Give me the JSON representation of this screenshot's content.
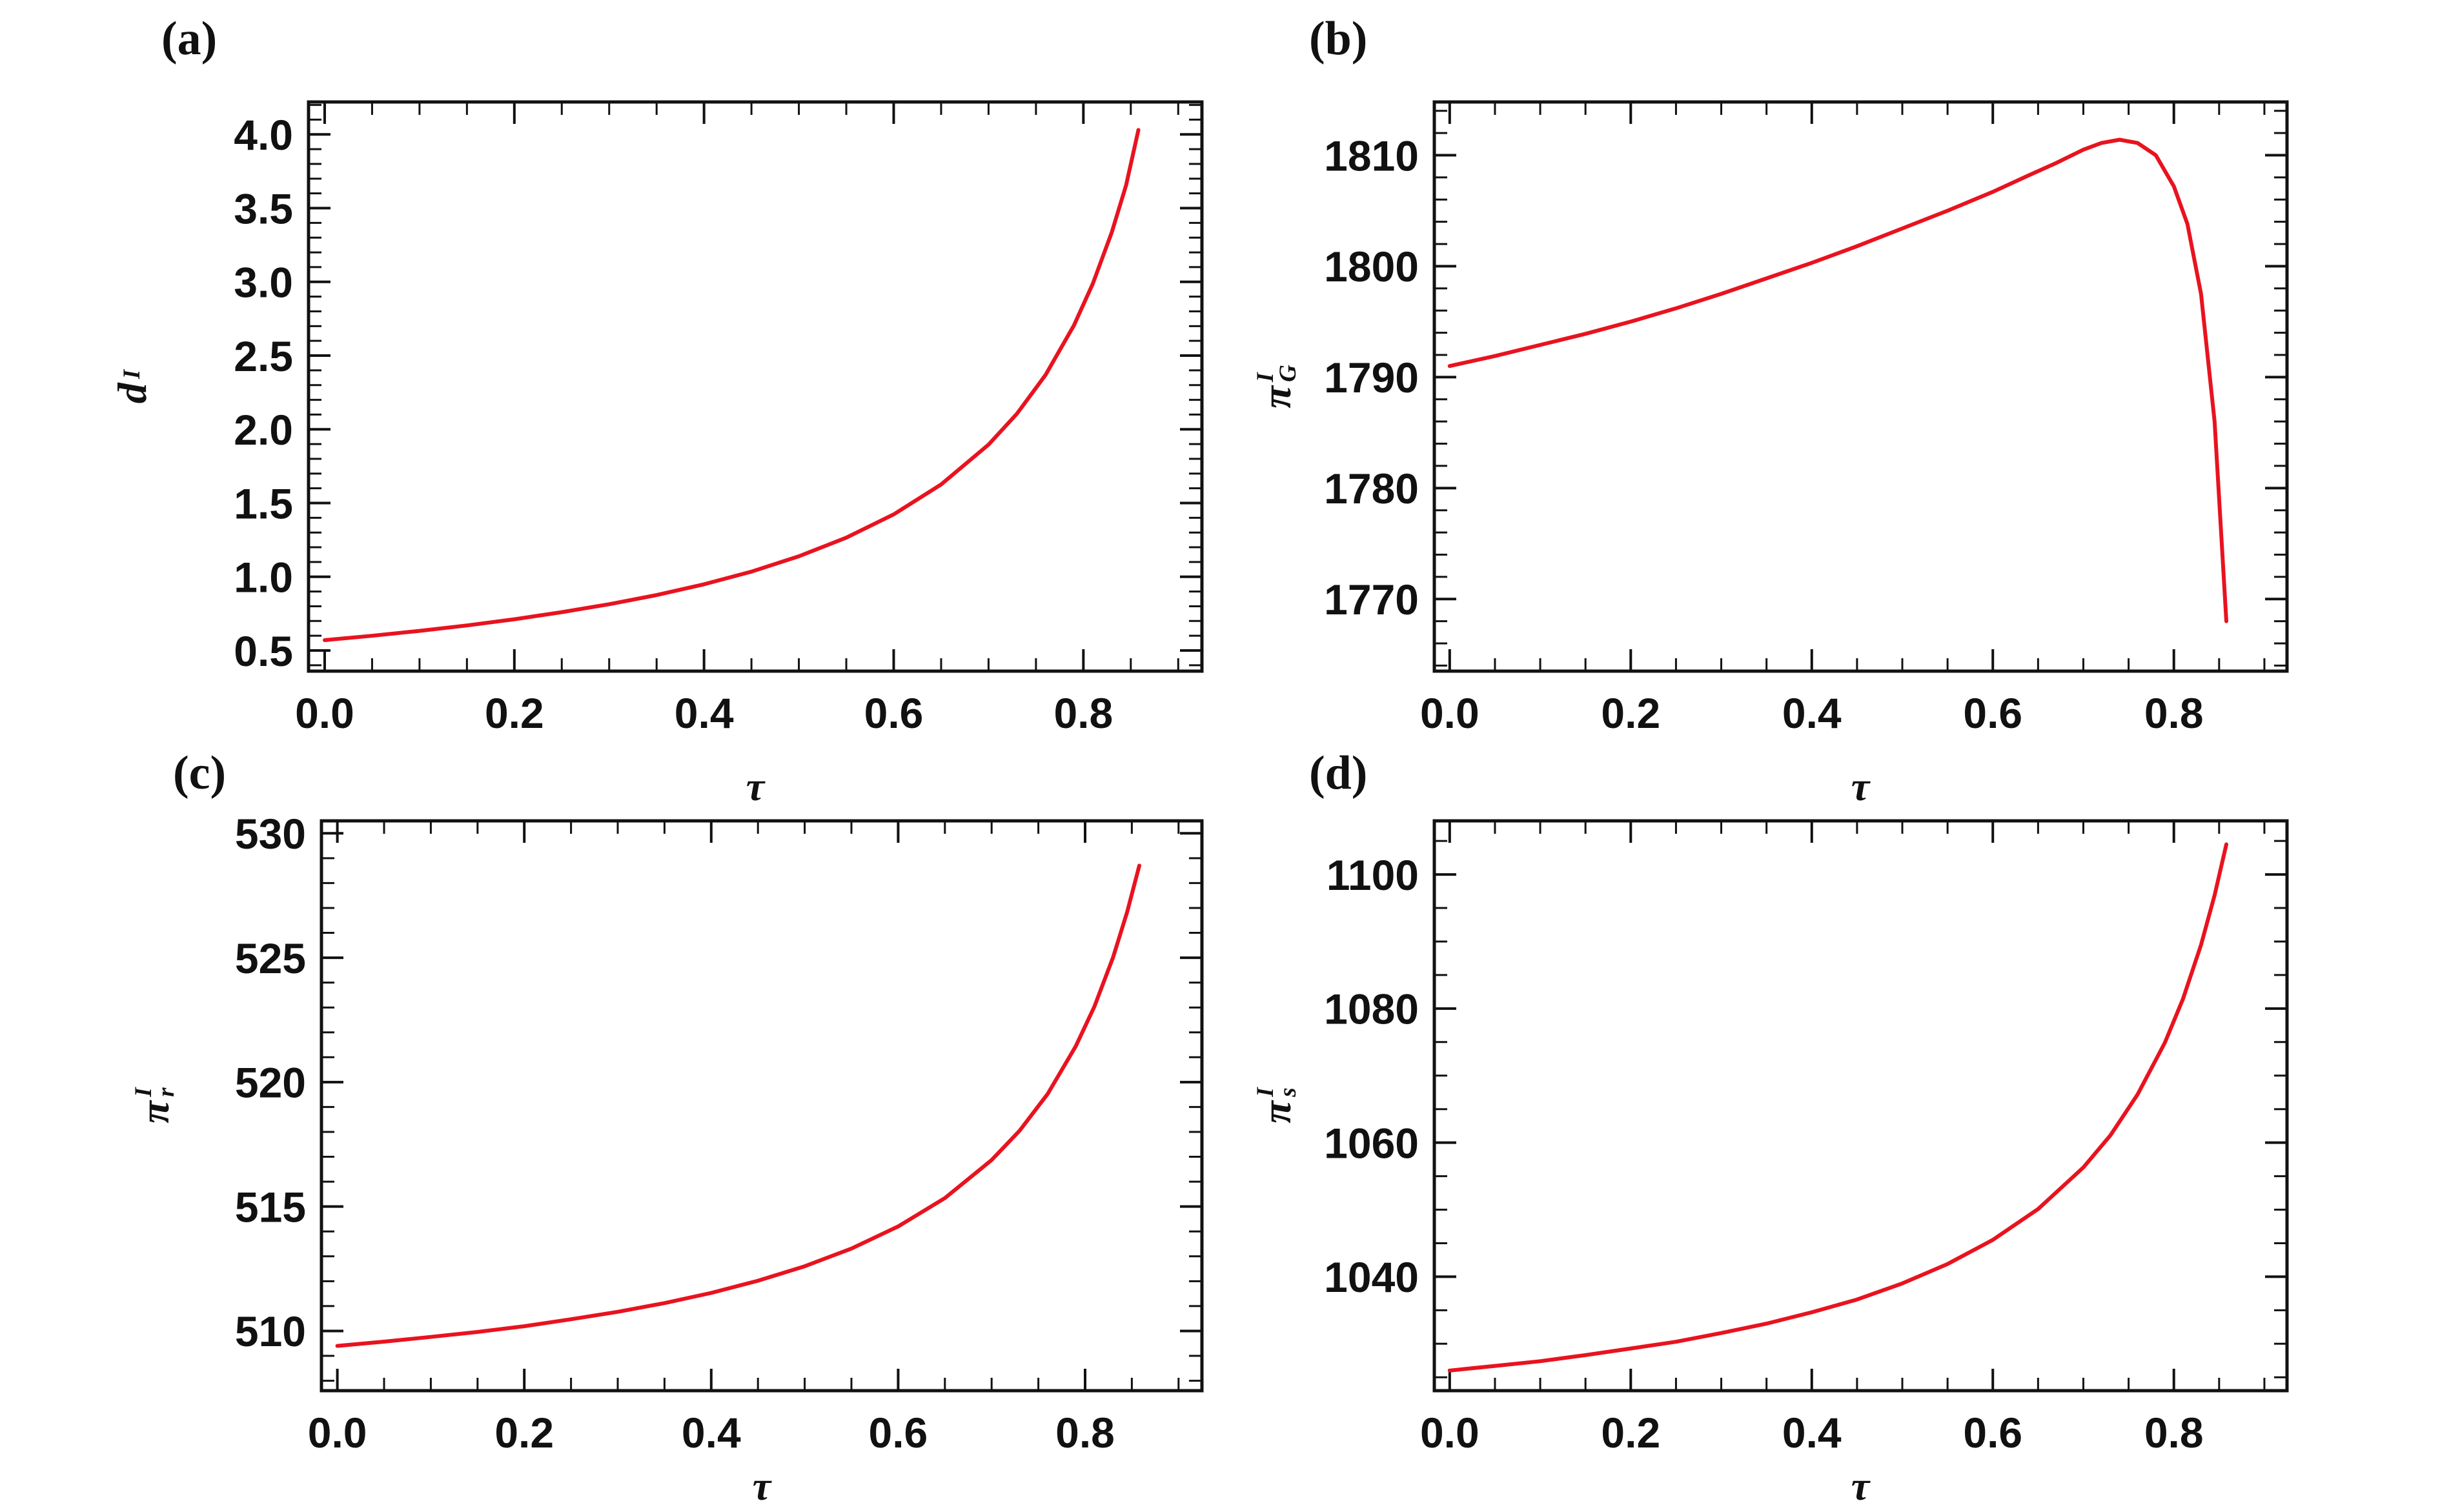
{
  "figure": {
    "background": "#ffffff",
    "frame_color": "#111111",
    "curve_color": "#e8131f",
    "tick_label_color": "#111111",
    "xlabel": "τ"
  },
  "chart_data": [
    {
      "type": "line",
      "panel": "(a)",
      "xlabel": "τ",
      "ylabel": "d^I",
      "ylabel_parts": {
        "base": "d",
        "sup": "I",
        "sub": ""
      },
      "xlim": [
        -0.017,
        0.925
      ],
      "ylim": [
        0.36,
        4.22
      ],
      "xticks": {
        "major": [
          0,
          0.2,
          0.4,
          0.6,
          0.8
        ],
        "labels": [
          "0.0",
          "0.2",
          "0.4",
          "0.6",
          "0.8"
        ],
        "minor_step": 0.05
      },
      "yticks": {
        "major": [
          0.5,
          1.0,
          1.5,
          2.0,
          2.5,
          3.0,
          3.5,
          4.0
        ],
        "labels": [
          "0.5",
          "1.0",
          "1.5",
          "2.0",
          "2.5",
          "3.0",
          "3.5",
          "4.0"
        ],
        "minor_step": 0.1
      },
      "grid": false,
      "legend": null,
      "series": [
        {
          "name": "d^I",
          "color": "#e8131f",
          "x": [
            0,
            0.05,
            0.1,
            0.15,
            0.2,
            0.25,
            0.3,
            0.35,
            0.4,
            0.45,
            0.5,
            0.55,
            0.6,
            0.65,
            0.7,
            0.73,
            0.76,
            0.79,
            0.81,
            0.83,
            0.845,
            0.858
          ],
          "y": [
            0.57,
            0.6,
            0.633,
            0.67,
            0.712,
            0.76,
            0.814,
            0.876,
            0.949,
            1.035,
            1.139,
            1.265,
            1.423,
            1.626,
            1.896,
            2.106,
            2.368,
            2.705,
            2.988,
            3.337,
            3.655,
            4.03
          ]
        }
      ]
    },
    {
      "type": "line",
      "panel": "(b)",
      "xlabel": "τ",
      "ylabel": "π_G^I",
      "ylabel_parts": {
        "base": "π",
        "sup": "I",
        "sub": "G"
      },
      "xlim": [
        -0.017,
        0.925
      ],
      "ylim": [
        1763.5,
        1814.8
      ],
      "xticks": {
        "major": [
          0,
          0.2,
          0.4,
          0.6,
          0.8
        ],
        "labels": [
          "0.0",
          "0.2",
          "0.4",
          "0.6",
          "0.8"
        ],
        "minor_step": 0.05
      },
      "yticks": {
        "major": [
          1770,
          1780,
          1790,
          1800,
          1810
        ],
        "labels": [
          "1770",
          "1780",
          "1790",
          "1800",
          "1810"
        ],
        "minor_step": 2
      },
      "grid": false,
      "legend": null,
      "series": [
        {
          "name": "π_G^I",
          "color": "#e8131f",
          "x": [
            0,
            0.05,
            0.1,
            0.15,
            0.2,
            0.25,
            0.3,
            0.35,
            0.4,
            0.45,
            0.5,
            0.55,
            0.6,
            0.64,
            0.67,
            0.7,
            0.72,
            0.74,
            0.76,
            0.78,
            0.8,
            0.815,
            0.83,
            0.845,
            0.858
          ],
          "y": [
            1791.0,
            1791.9,
            1792.9,
            1793.9,
            1795.0,
            1796.2,
            1797.5,
            1798.9,
            1800.3,
            1801.8,
            1803.4,
            1805.0,
            1806.7,
            1808.2,
            1809.3,
            1810.5,
            1811.1,
            1811.4,
            1811.1,
            1810.0,
            1807.2,
            1803.8,
            1797.5,
            1786.0,
            1768.0
          ]
        }
      ]
    },
    {
      "type": "line",
      "panel": "(c)",
      "xlabel": "τ",
      "ylabel": "π_r^I",
      "ylabel_parts": {
        "base": "π",
        "sup": "I",
        "sub": "r"
      },
      "xlim": [
        -0.017,
        0.925
      ],
      "ylim": [
        507.6,
        530.5
      ],
      "xticks": {
        "major": [
          0,
          0.2,
          0.4,
          0.6,
          0.8
        ],
        "labels": [
          "0.0",
          "0.2",
          "0.4",
          "0.6",
          "0.8"
        ],
        "minor_step": 0.05
      },
      "yticks": {
        "major": [
          510,
          515,
          520,
          525,
          530
        ],
        "labels": [
          "510",
          "515",
          "520",
          "525",
          "530"
        ],
        "minor_step": 1
      },
      "grid": false,
      "legend": null,
      "series": [
        {
          "name": "π_r^I",
          "color": "#e8131f",
          "x": [
            0,
            0.05,
            0.1,
            0.15,
            0.2,
            0.25,
            0.3,
            0.35,
            0.4,
            0.45,
            0.5,
            0.55,
            0.6,
            0.65,
            0.7,
            0.73,
            0.76,
            0.79,
            0.81,
            0.83,
            0.845,
            0.858
          ],
          "y": [
            509.4,
            509.57,
            509.76,
            509.96,
            510.19,
            510.47,
            510.77,
            511.12,
            511.53,
            512.02,
            512.6,
            513.31,
            514.2,
            515.34,
            516.87,
            518.05,
            519.53,
            521.44,
            523.04,
            525.02,
            526.84,
            528.7
          ]
        }
      ]
    },
    {
      "type": "line",
      "panel": "(d)",
      "xlabel": "τ",
      "ylabel": "π_s^I",
      "ylabel_parts": {
        "base": "π",
        "sup": "I",
        "sub": "s"
      },
      "xlim": [
        -0.017,
        0.925
      ],
      "ylim": [
        1023,
        1108
      ],
      "xticks": {
        "major": [
          0,
          0.2,
          0.4,
          0.6,
          0.8
        ],
        "labels": [
          "0.0",
          "0.2",
          "0.4",
          "0.6",
          "0.8"
        ],
        "minor_step": 0.05
      },
      "yticks": {
        "major": [
          1040,
          1060,
          1080,
          1100
        ],
        "labels": [
          "1040",
          "1060",
          "1080",
          "1100"
        ],
        "minor_step": 5
      },
      "grid": false,
      "legend": null,
      "series": [
        {
          "name": "π_s^I",
          "color": "#e8131f",
          "x": [
            0,
            0.05,
            0.1,
            0.15,
            0.2,
            0.25,
            0.3,
            0.35,
            0.4,
            0.45,
            0.5,
            0.55,
            0.6,
            0.65,
            0.7,
            0.73,
            0.76,
            0.79,
            0.81,
            0.83,
            0.845,
            0.858
          ],
          "y": [
            1026,
            1026.7,
            1027.4,
            1028.3,
            1029.3,
            1030.3,
            1031.6,
            1033.0,
            1034.7,
            1036.6,
            1039.0,
            1041.9,
            1045.5,
            1050.1,
            1056.3,
            1061.1,
            1067.2,
            1074.9,
            1081.4,
            1089.5,
            1096.9,
            1104.5
          ]
        }
      ]
    }
  ]
}
